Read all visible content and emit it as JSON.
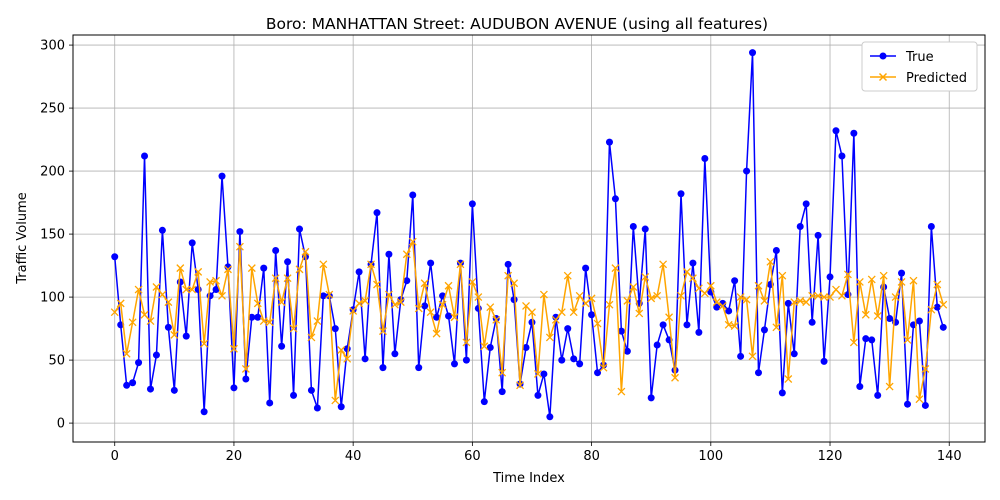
{
  "chart_data": {
    "type": "line",
    "title": "Boro: MANHATTAN Street: AUDUBON AVENUE (using all features)",
    "xlabel": "Time Index",
    "ylabel": "Traffic Volume",
    "xlim": [
      -7,
      146
    ],
    "ylim": [
      -15,
      308
    ],
    "xticks": [
      0,
      20,
      40,
      60,
      80,
      100,
      120,
      140
    ],
    "yticks": [
      0,
      50,
      100,
      150,
      200,
      250,
      300
    ],
    "grid": true,
    "legend_position": "top-right",
    "series": [
      {
        "name": "True",
        "color": "#0000ff",
        "marker": "circle",
        "values": [
          132,
          78,
          30,
          32,
          48,
          212,
          27,
          54,
          153,
          76,
          26,
          112,
          69,
          143,
          106,
          9,
          101,
          106,
          196,
          124,
          28,
          152,
          35,
          84,
          84,
          123,
          16,
          137,
          61,
          128,
          22,
          154,
          132,
          26,
          12,
          101,
          101,
          75,
          13,
          59,
          90,
          120,
          51,
          126,
          167,
          44,
          134,
          55,
          98,
          113,
          181,
          44,
          93,
          127,
          84,
          101,
          85,
          47,
          127,
          50,
          174,
          91,
          17,
          60,
          83,
          25,
          126,
          98,
          31,
          60,
          80,
          22,
          39,
          5,
          84,
          50,
          75,
          51,
          47,
          123,
          86,
          40,
          46,
          223,
          178,
          73,
          57,
          156,
          95,
          154,
          20,
          62,
          78,
          66,
          42,
          182,
          78,
          127,
          72,
          210,
          104,
          92,
          95,
          89,
          113,
          53,
          200,
          294,
          40,
          74,
          110,
          137,
          24,
          95,
          55,
          156,
          174,
          80,
          149,
          49,
          116,
          232,
          212,
          102,
          230,
          29,
          67,
          66,
          22,
          108,
          83,
          80,
          119,
          15,
          78,
          81,
          14,
          156,
          92,
          76
        ]
      },
      {
        "name": "Predicted",
        "color": "#ffa500",
        "marker": "x",
        "values": [
          88,
          95,
          55,
          80,
          106,
          86,
          81,
          108,
          102,
          96,
          70,
          123,
          106,
          106,
          120,
          63,
          112,
          113,
          101,
          122,
          59,
          140,
          43,
          123,
          95,
          81,
          80,
          115,
          96,
          115,
          75,
          122,
          136,
          68,
          81,
          126,
          102,
          18,
          58,
          51,
          89,
          95,
          97,
          126,
          110,
          73,
          102,
          94,
          96,
          134,
          144,
          91,
          111,
          88,
          71,
          94,
          109,
          84,
          126,
          64,
          112,
          100,
          61,
          92,
          82,
          40,
          117,
          111,
          30,
          93,
          88,
          39,
          102,
          68,
          82,
          88,
          117,
          88,
          101,
          95,
          99,
          79,
          44,
          94,
          123,
          25,
          97,
          108,
          87,
          116,
          99,
          101,
          126,
          84,
          36,
          101,
          120,
          115,
          107,
          103,
          109,
          96,
          93,
          78,
          77,
          100,
          98,
          53,
          109,
          97,
          128,
          76,
          117,
          35,
          96,
          97,
          96,
          101,
          101,
          100,
          100,
          106,
          101,
          118,
          64,
          112,
          86,
          114,
          85,
          117,
          29,
          100,
          112,
          66,
          113,
          19,
          43,
          90,
          110,
          94
        ]
      }
    ]
  }
}
